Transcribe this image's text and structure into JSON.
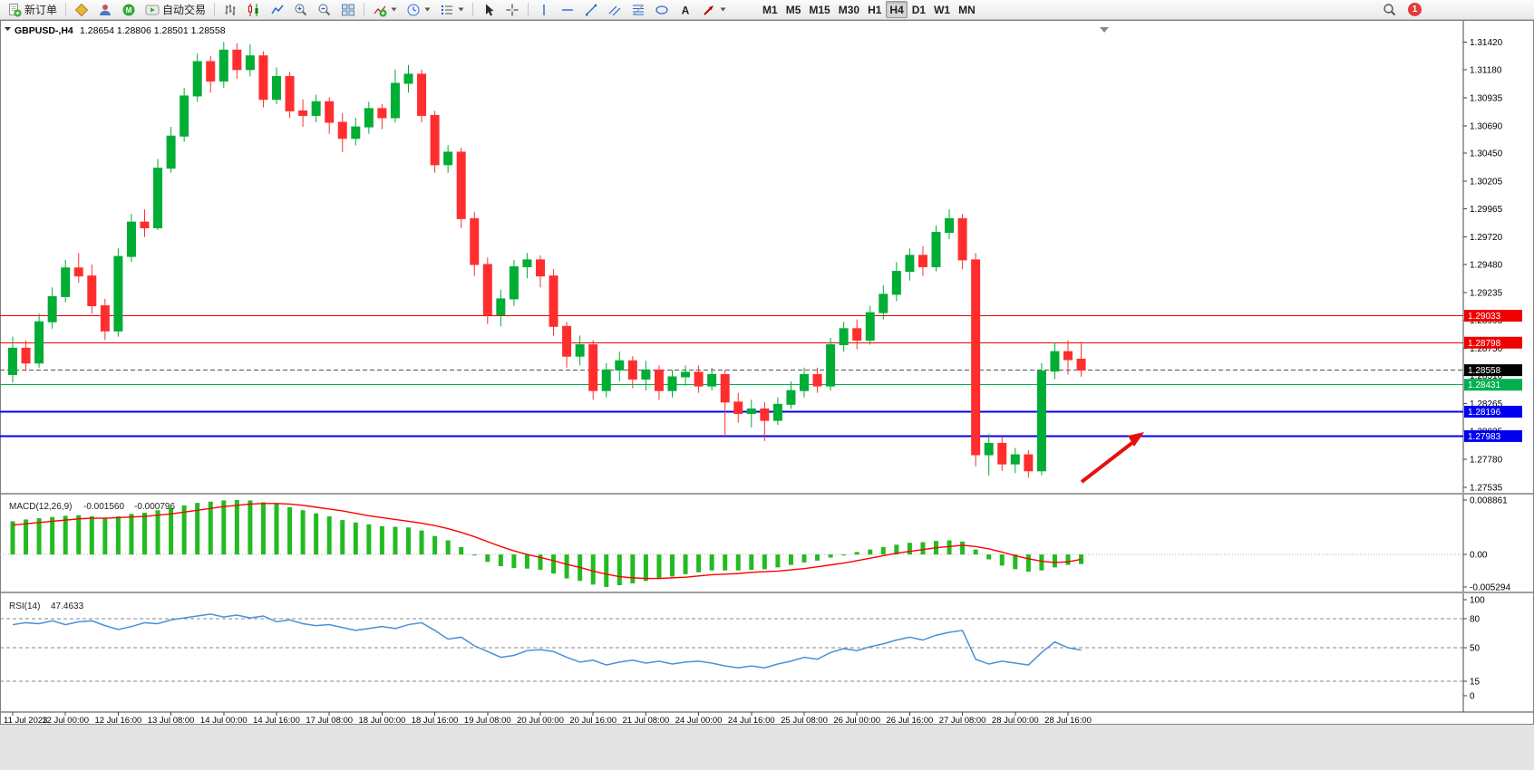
{
  "toolbar": {
    "new_order": "新订单",
    "autotrading": "自动交易",
    "timeframes": [
      "M1",
      "M5",
      "M15",
      "M30",
      "H1",
      "H4",
      "D1",
      "W1",
      "MN"
    ],
    "active_timeframe": "H4",
    "notification_count": "1"
  },
  "chart": {
    "symbol": "GBPUSD-,H4",
    "ohlc": {
      "open": "1.28654",
      "high": "1.28806",
      "low": "1.28501",
      "close": "1.28558"
    },
    "price_ticks": [
      "1.31420",
      "1.31180",
      "1.30935",
      "1.30690",
      "1.30450",
      "1.30205",
      "1.29965",
      "1.29720",
      "1.29480",
      "1.29235",
      "1.28995",
      "1.28750",
      "1.28510",
      "1.28265",
      "1.28025",
      "1.27780",
      "1.27535"
    ],
    "hlines": [
      {
        "price": 1.29033,
        "label": "1.29033",
        "color": "#ee0000",
        "width": 1
      },
      {
        "price": 1.28798,
        "label": "1.28798",
        "color": "#ee0000",
        "width": 1
      },
      {
        "price": 1.28431,
        "label": "1.28431",
        "color": "#00b050",
        "width": 1
      },
      {
        "price": 1.28196,
        "label": "1.28196",
        "color": "#0000ee",
        "width": 2
      },
      {
        "price": 1.27983,
        "label": "1.27983",
        "color": "#0000ee",
        "width": 2
      }
    ],
    "current_price": {
      "value": 1.28558,
      "label": "1.28558",
      "color": "#000000"
    },
    "arrow_color": "#e80f0f",
    "colors": {
      "up": "#00ad35",
      "down": "#ff2e2e",
      "macd_hist": "#22bb22",
      "macd_signal": "#ff0000",
      "rsi_line": "#4a90d9"
    }
  },
  "chart_data": {
    "type": "candlestick",
    "symbol": "GBPUSD",
    "timeframe": "H4",
    "price_range": [
      1.2752,
      1.3155
    ],
    "x_label_step": 4,
    "x_labels": [
      "11 Jul 2023",
      "12 Jul 00:00",
      "12 Jul 16:00",
      "13 Jul 08:00",
      "14 Jul 00:00",
      "14 Jul 16:00",
      "17 Jul 08:00",
      "18 Jul 00:00",
      "18 Jul 16:00",
      "19 Jul 08:00",
      "20 Jul 00:00",
      "20 Jul 16:00",
      "21 Jul 08:00",
      "24 Jul 00:00",
      "24 Jul 16:00",
      "25 Jul 08:00",
      "26 Jul 00:00",
      "26 Jul 16:00",
      "27 Jul 08:00",
      "28 Jul 00:00",
      "28 Jul 16:00"
    ],
    "candles_ohlc": [
      [
        1.2852,
        1.2885,
        1.2845,
        1.2875
      ],
      [
        1.2875,
        1.2882,
        1.2855,
        1.2862
      ],
      [
        1.2862,
        1.2905,
        1.2858,
        1.2898
      ],
      [
        1.2898,
        1.2928,
        1.2892,
        1.292
      ],
      [
        1.292,
        1.2952,
        1.2915,
        1.2945
      ],
      [
        1.2945,
        1.2958,
        1.2932,
        1.2938
      ],
      [
        1.2938,
        1.2948,
        1.2905,
        1.2912
      ],
      [
        1.2912,
        1.2918,
        1.2882,
        1.289
      ],
      [
        1.289,
        1.2962,
        1.2885,
        1.2955
      ],
      [
        1.2955,
        1.2992,
        1.295,
        1.2985
      ],
      [
        1.2985,
        1.2996,
        1.2972,
        1.298
      ],
      [
        1.298,
        1.304,
        1.2978,
        1.3032
      ],
      [
        1.3032,
        1.3068,
        1.3028,
        1.306
      ],
      [
        1.306,
        1.3102,
        1.3055,
        1.3095
      ],
      [
        1.3095,
        1.3132,
        1.309,
        1.3125
      ],
      [
        1.3125,
        1.313,
        1.3098,
        1.3108
      ],
      [
        1.3108,
        1.3142,
        1.3102,
        1.3135
      ],
      [
        1.3135,
        1.3141,
        1.311,
        1.3118
      ],
      [
        1.3118,
        1.314,
        1.3112,
        1.313
      ],
      [
        1.313,
        1.3134,
        1.3085,
        1.3092
      ],
      [
        1.3092,
        1.312,
        1.3088,
        1.3112
      ],
      [
        1.3112,
        1.3116,
        1.3076,
        1.3082
      ],
      [
        1.3082,
        1.3092,
        1.3068,
        1.3078
      ],
      [
        1.3078,
        1.3096,
        1.3072,
        1.309
      ],
      [
        1.309,
        1.3094,
        1.3062,
        1.3072
      ],
      [
        1.3072,
        1.308,
        1.3046,
        1.3058
      ],
      [
        1.3058,
        1.3076,
        1.3052,
        1.3068
      ],
      [
        1.3068,
        1.309,
        1.3062,
        1.3084
      ],
      [
        1.3084,
        1.3088,
        1.3066,
        1.3076
      ],
      [
        1.3076,
        1.3118,
        1.3072,
        1.3106
      ],
      [
        1.3106,
        1.3122,
        1.3098,
        1.3114
      ],
      [
        1.3114,
        1.3118,
        1.3072,
        1.3078
      ],
      [
        1.3078,
        1.3082,
        1.3028,
        1.3035
      ],
      [
        1.3035,
        1.3052,
        1.3028,
        1.3046
      ],
      [
        1.3046,
        1.305,
        1.298,
        1.2988
      ],
      [
        1.2988,
        1.2994,
        1.2938,
        1.2948
      ],
      [
        1.2948,
        1.2954,
        1.2896,
        1.2904
      ],
      [
        1.2904,
        1.2926,
        1.2894,
        1.2918
      ],
      [
        1.2918,
        1.2952,
        1.2912,
        1.2946
      ],
      [
        1.2946,
        1.2958,
        1.2936,
        1.2952
      ],
      [
        1.2952,
        1.2956,
        1.2928,
        1.2938
      ],
      [
        1.2938,
        1.2944,
        1.2886,
        1.2894
      ],
      [
        1.2894,
        1.2898,
        1.2858,
        1.2868
      ],
      [
        1.2868,
        1.2886,
        1.286,
        1.2878
      ],
      [
        1.2878,
        1.2882,
        1.283,
        1.2838
      ],
      [
        1.2838,
        1.2862,
        1.2832,
        1.2856
      ],
      [
        1.2856,
        1.2872,
        1.2846,
        1.2864
      ],
      [
        1.2864,
        1.2868,
        1.284,
        1.2848
      ],
      [
        1.2848,
        1.2864,
        1.2838,
        1.2856
      ],
      [
        1.2856,
        1.286,
        1.283,
        1.2838
      ],
      [
        1.2838,
        1.2856,
        1.2832,
        1.285
      ],
      [
        1.285,
        1.286,
        1.2842,
        1.2854
      ],
      [
        1.2854,
        1.286,
        1.2836,
        1.2842
      ],
      [
        1.2842,
        1.2858,
        1.2838,
        1.2852
      ],
      [
        1.2852,
        1.2856,
        1.2798,
        1.2828
      ],
      [
        1.2828,
        1.2836,
        1.281,
        1.2818
      ],
      [
        1.2818,
        1.283,
        1.2806,
        1.2822
      ],
      [
        1.2822,
        1.2828,
        1.2794,
        1.2812
      ],
      [
        1.2812,
        1.2832,
        1.2808,
        1.2826
      ],
      [
        1.2826,
        1.2846,
        1.2822,
        1.2838
      ],
      [
        1.2838,
        1.2858,
        1.2832,
        1.2852
      ],
      [
        1.2852,
        1.2858,
        1.2836,
        1.2842
      ],
      [
        1.2842,
        1.2884,
        1.2838,
        1.2878
      ],
      [
        1.2878,
        1.2898,
        1.2872,
        1.2892
      ],
      [
        1.2892,
        1.29,
        1.2874,
        1.2882
      ],
      [
        1.2882,
        1.2912,
        1.2878,
        1.2906
      ],
      [
        1.2906,
        1.293,
        1.29,
        1.2922
      ],
      [
        1.2922,
        1.295,
        1.2916,
        1.2942
      ],
      [
        1.2942,
        1.2962,
        1.2934,
        1.2956
      ],
      [
        1.2956,
        1.2964,
        1.2938,
        1.2946
      ],
      [
        1.2946,
        1.2982,
        1.2942,
        1.2976
      ],
      [
        1.2976,
        1.2996,
        1.297,
        1.2988
      ],
      [
        1.2988,
        1.2992,
        1.2944,
        1.2952
      ],
      [
        1.2952,
        1.2958,
        1.2772,
        1.2782
      ],
      [
        1.2782,
        1.28,
        1.2764,
        1.2792
      ],
      [
        1.2792,
        1.2798,
        1.2768,
        1.2774
      ],
      [
        1.2774,
        1.2788,
        1.2766,
        1.2782
      ],
      [
        1.2782,
        1.2786,
        1.2762,
        1.2768
      ],
      [
        1.2768,
        1.2862,
        1.2764,
        1.2855
      ],
      [
        1.2855,
        1.288,
        1.2848,
        1.2872
      ],
      [
        1.2872,
        1.2882,
        1.2852,
        1.2865
      ],
      [
        1.28654,
        1.28806,
        1.28501,
        1.28558
      ]
    ],
    "indicators": [
      {
        "name": "MACD",
        "label": "MACD(12,26,9)",
        "values": [
          "-0.001560",
          "-0.000796"
        ],
        "range": [
          -0.005294,
          0.008861
        ],
        "axis_ticks": [
          "0.008861",
          "0.00",
          "-0.005294"
        ],
        "histogram": [
          0.0054,
          0.0057,
          0.0059,
          0.0061,
          0.0063,
          0.0064,
          0.0062,
          0.006,
          0.0062,
          0.0066,
          0.0068,
          0.0072,
          0.0076,
          0.008,
          0.0084,
          0.0086,
          0.0088,
          0.00886,
          0.0088,
          0.0085,
          0.0082,
          0.0077,
          0.0072,
          0.0067,
          0.0062,
          0.0056,
          0.0052,
          0.0049,
          0.0046,
          0.0045,
          0.0044,
          0.0039,
          0.003,
          0.0023,
          0.0012,
          0.0,
          -0.0012,
          -0.0019,
          -0.0022,
          -0.0023,
          -0.0025,
          -0.0031,
          -0.0039,
          -0.0043,
          -0.0049,
          -0.00529,
          -0.005,
          -0.0047,
          -0.0043,
          -0.004,
          -0.0036,
          -0.0032,
          -0.0029,
          -0.0026,
          -0.0026,
          -0.0026,
          -0.0025,
          -0.0024,
          -0.0021,
          -0.0017,
          -0.0013,
          -0.001,
          -0.0005,
          0.0,
          0.0004,
          0.0008,
          0.0012,
          0.0016,
          0.0019,
          0.002,
          0.0022,
          0.0023,
          0.0021,
          0.0008,
          -0.0008,
          -0.0018,
          -0.0024,
          -0.0028,
          -0.0026,
          -0.0021,
          -0.0017,
          -0.00156
        ],
        "signal": [
          0.0048,
          0.005,
          0.0052,
          0.0054,
          0.0056,
          0.0058,
          0.0059,
          0.0059,
          0.006,
          0.0061,
          0.0062,
          0.0064,
          0.0066,
          0.0069,
          0.0072,
          0.0075,
          0.0078,
          0.008,
          0.0082,
          0.0083,
          0.0083,
          0.0082,
          0.008,
          0.0077,
          0.0074,
          0.0071,
          0.0067,
          0.0063,
          0.006,
          0.0057,
          0.0054,
          0.0051,
          0.0047,
          0.0042,
          0.0036,
          0.0029,
          0.0021,
          0.0013,
          0.0006,
          0.0,
          -0.0005,
          -0.001,
          -0.0016,
          -0.0021,
          -0.0027,
          -0.0032,
          -0.0036,
          -0.0038,
          -0.0039,
          -0.0039,
          -0.0038,
          -0.0037,
          -0.0035,
          -0.0033,
          -0.0032,
          -0.0031,
          -0.0029,
          -0.0028,
          -0.0027,
          -0.0025,
          -0.0023,
          -0.002,
          -0.0017,
          -0.0014,
          -0.001,
          -0.0006,
          -0.0002,
          0.0002,
          0.0005,
          0.0008,
          0.0011,
          0.0013,
          0.0015,
          0.0013,
          0.0009,
          0.0004,
          -0.0002,
          -0.0007,
          -0.0011,
          -0.0013,
          -0.0012,
          -0.000796
        ]
      },
      {
        "name": "RSI",
        "label": "RSI(14)",
        "value": "47.4633",
        "range": [
          0,
          100
        ],
        "axis_ticks": [
          "100",
          "80",
          "50",
          "15",
          "0"
        ],
        "levels": [
          80,
          50,
          15
        ],
        "values": [
          74,
          76,
          75,
          78,
          74,
          77,
          78,
          73,
          69,
          72,
          76,
          75,
          79,
          81,
          83,
          85,
          82,
          84,
          81,
          83,
          77,
          79,
          75,
          73,
          74,
          71,
          68,
          70,
          72,
          70,
          74,
          76,
          68,
          59,
          61,
          52,
          46,
          40,
          42,
          47,
          48,
          46,
          40,
          35,
          37,
          32,
          35,
          37,
          34,
          36,
          33,
          35,
          36,
          34,
          31,
          29,
          31,
          29,
          33,
          36,
          40,
          38,
          45,
          49,
          47,
          51,
          54,
          58,
          61,
          58,
          63,
          66,
          68,
          38,
          33,
          36,
          34,
          32,
          45,
          56,
          50,
          47.4633
        ]
      }
    ]
  }
}
